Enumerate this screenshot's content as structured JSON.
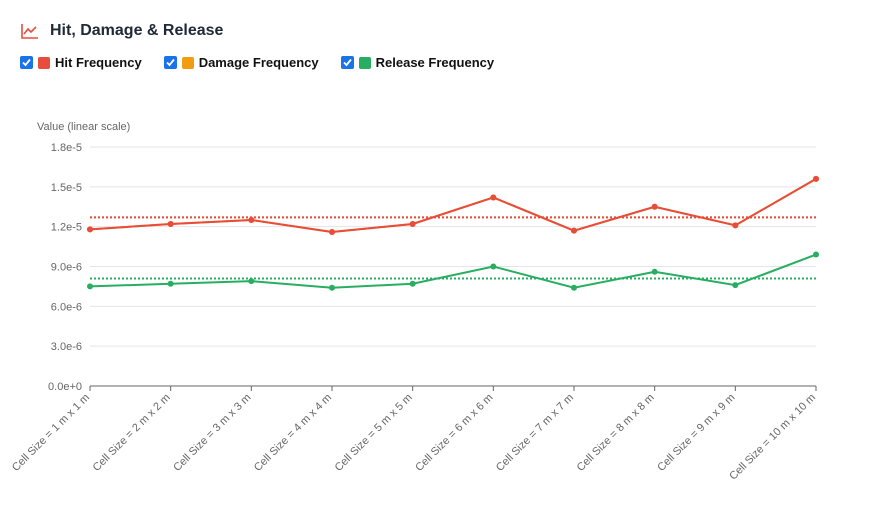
{
  "header": {
    "title": "Hit, Damage & Release",
    "icon": "line-chart-icon",
    "icon_color": "#e74c3c"
  },
  "legend": [
    {
      "label": "Hit Frequency",
      "color": "#e74c3c",
      "checked": true
    },
    {
      "label": "Damage Frequency",
      "color": "#f39c12",
      "checked": true
    },
    {
      "label": "Release Frequency",
      "color": "#27ae60",
      "checked": true
    }
  ],
  "chart_data": {
    "type": "line",
    "ylabel": "Value (linear scale)",
    "ylim": [
      0,
      1.8e-05
    ],
    "yticks": [
      "0.0e+0",
      "3.0e-6",
      "6.0e-6",
      "9.0e-6",
      "1.2e-5",
      "1.5e-5",
      "1.8e-5"
    ],
    "grid": true,
    "categories": [
      "Cell Size = 1 m x 1 m",
      "Cell Size = 2 m x 2 m",
      "Cell Size = 3 m x 3 m",
      "Cell Size = 4 m x 4 m",
      "Cell Size = 5 m x 5 m",
      "Cell Size = 6 m x 6 m",
      "Cell Size = 7 m x 7 m",
      "Cell Size = 8 m x 8 m",
      "Cell Size = 9 m x 9 m",
      "Cell Size = 10 m x 10 m"
    ],
    "series": [
      {
        "name": "Damage Frequency",
        "color": "#f39c12",
        "values": [
          1.18e-05,
          1.22e-05,
          1.25e-05,
          1.16e-05,
          1.22e-05,
          1.42e-05,
          1.17e-05,
          1.35e-05,
          1.21e-05,
          1.56e-05
        ],
        "mean": 1.27e-05
      },
      {
        "name": "Hit Frequency",
        "color": "#e74c3c",
        "values": [
          1.18e-05,
          1.22e-05,
          1.25e-05,
          1.16e-05,
          1.22e-05,
          1.42e-05,
          1.17e-05,
          1.35e-05,
          1.21e-05,
          1.56e-05
        ],
        "mean": 1.27e-05
      },
      {
        "name": "Release Frequency",
        "color": "#27ae60",
        "values": [
          7.5e-06,
          7.7e-06,
          7.9e-06,
          7.4e-06,
          7.7e-06,
          9e-06,
          7.4e-06,
          8.6e-06,
          7.6e-06,
          9.9e-06
        ],
        "mean": 8.1e-06
      }
    ]
  }
}
